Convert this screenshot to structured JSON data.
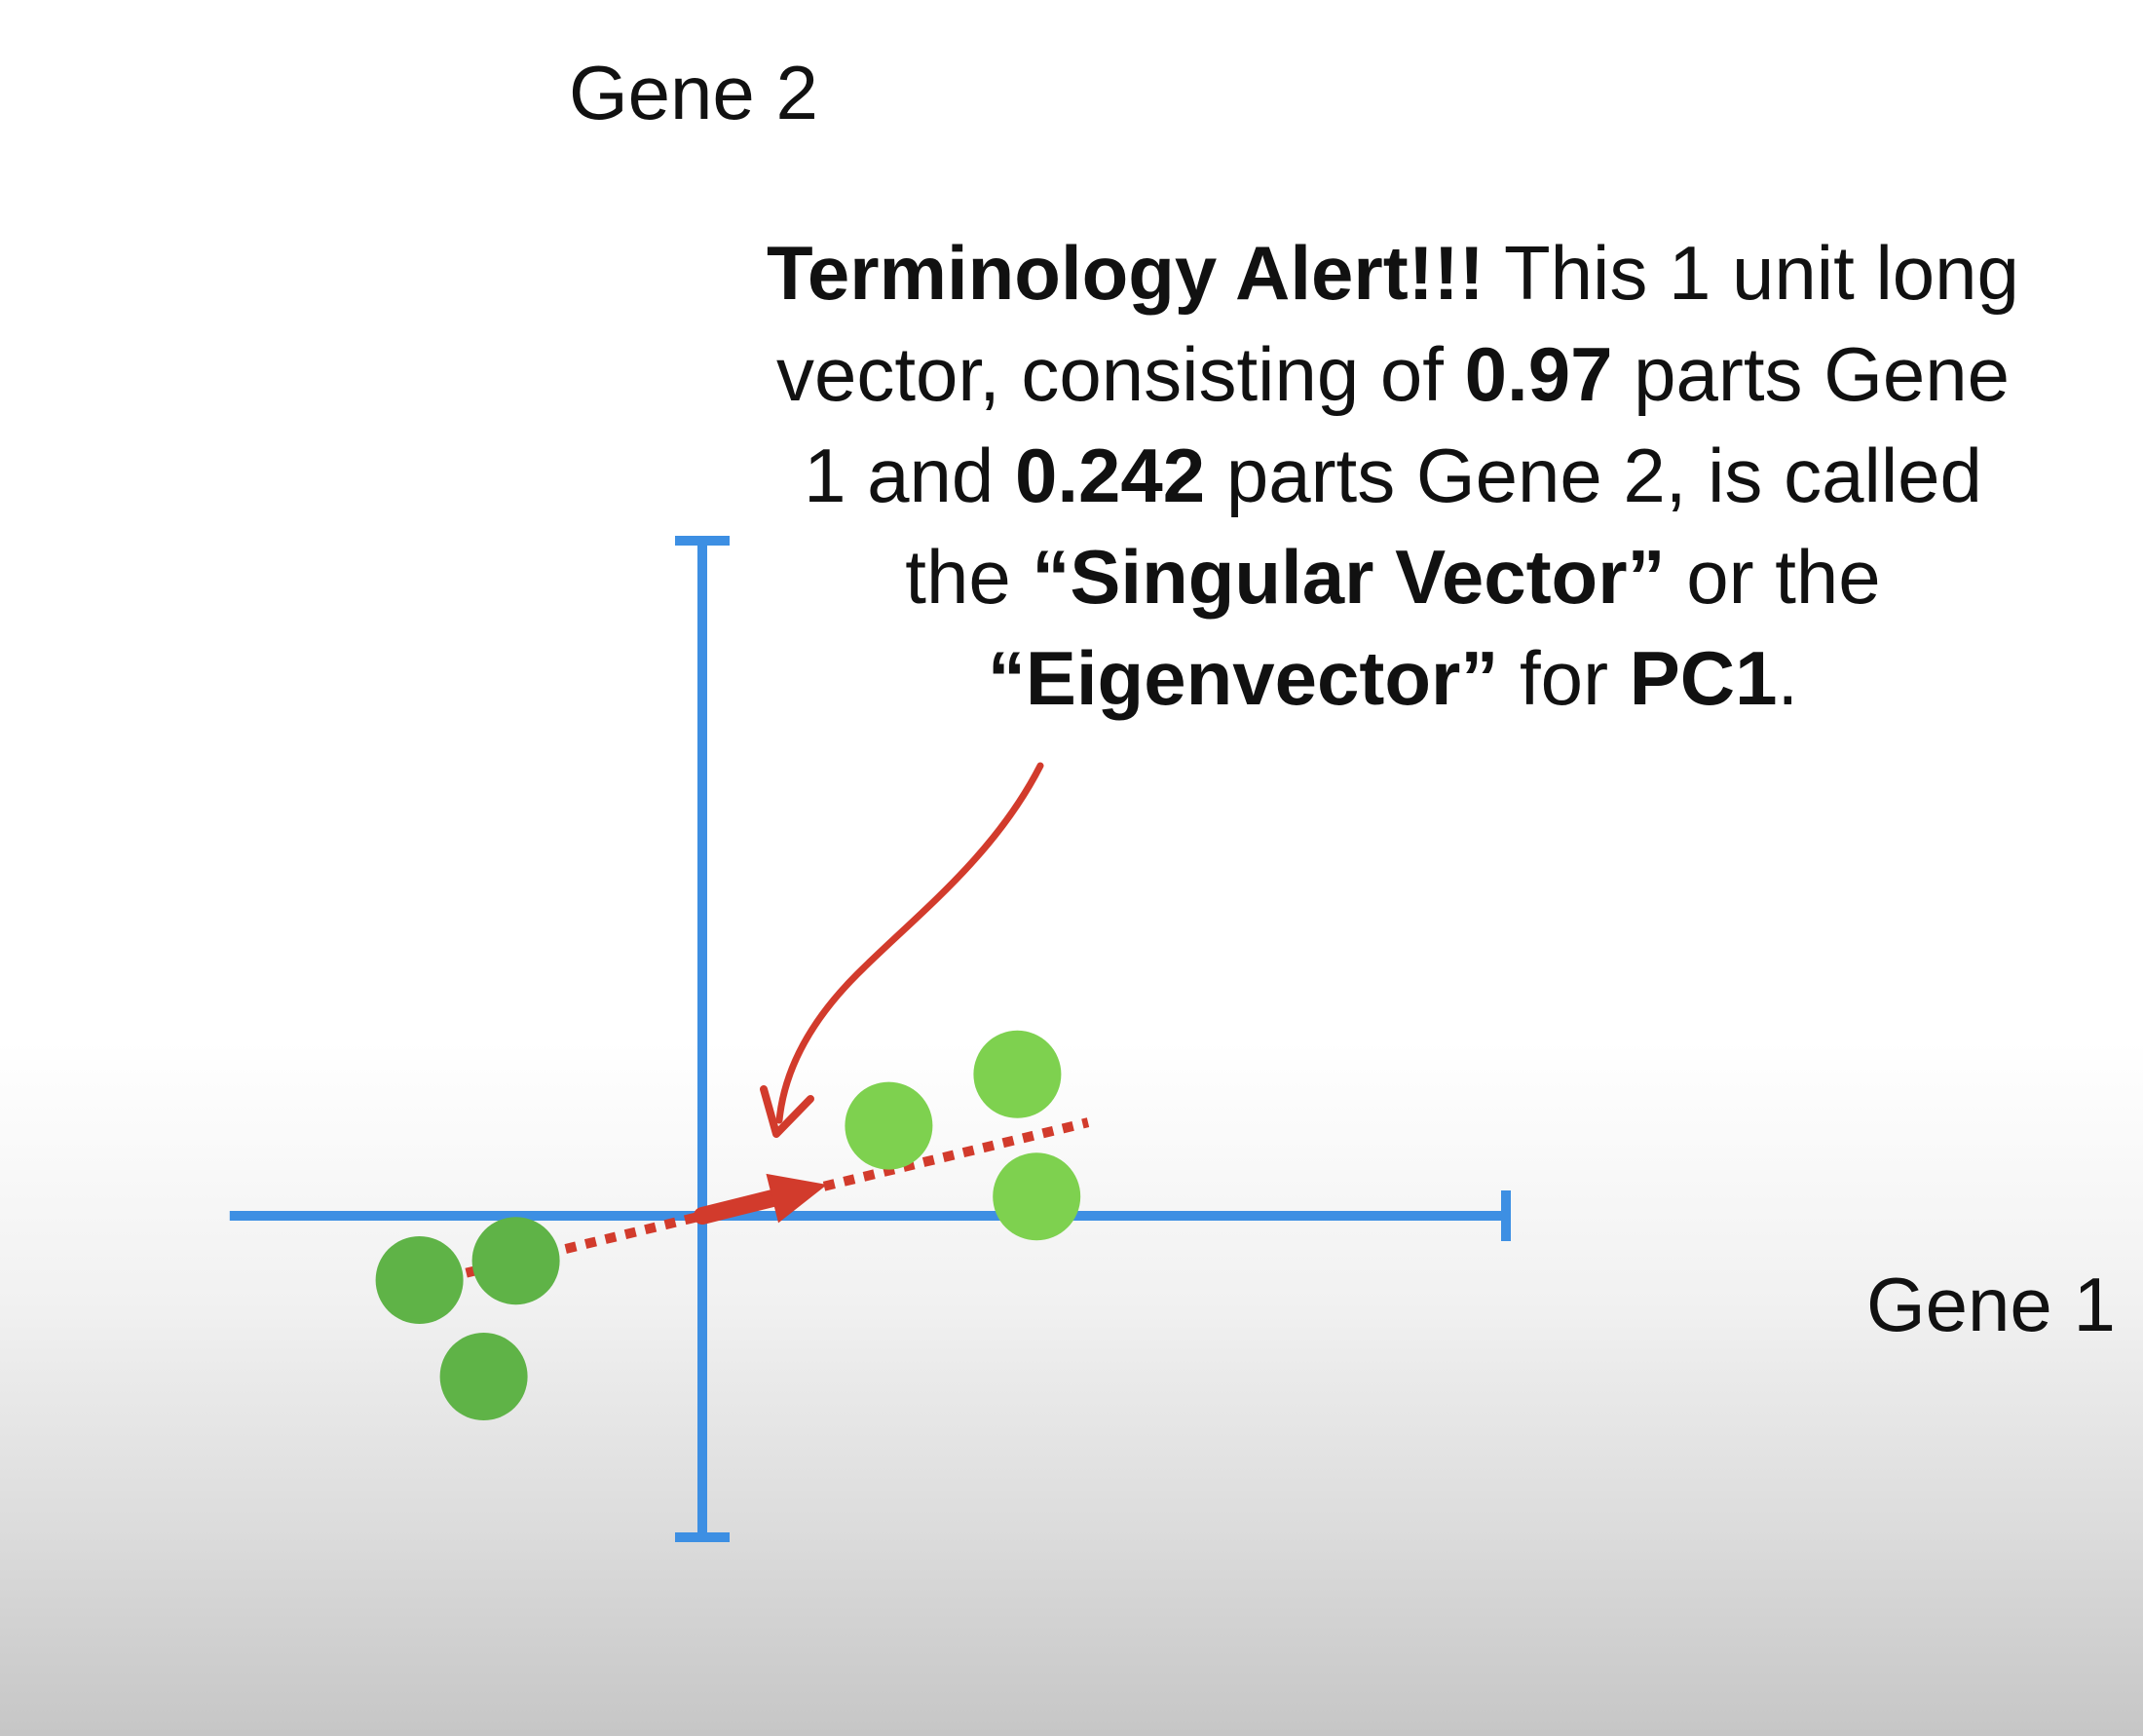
{
  "chart_data": {
    "type": "scatter",
    "xlabel": "Gene 1",
    "ylabel": "Gene 2",
    "xlim": [
      -7.2,
      12.5
    ],
    "ylim": [
      -5.0,
      10.5
    ],
    "points": [
      {
        "x": 5.2,
        "y": 0.3
      },
      {
        "x": 2.9,
        "y": 1.4
      },
      {
        "x": 4.9,
        "y": 2.2
      },
      {
        "x": -4.4,
        "y": -1.0
      },
      {
        "x": -2.9,
        "y": -0.7
      },
      {
        "x": -3.4,
        "y": -2.5
      }
    ],
    "point_colors": [
      "#7ed14f",
      "#5fb347"
    ],
    "axis_color": "#3d8fe3",
    "pc1_line": {
      "slope": 0.242,
      "x_range": [
        -4.6,
        6.0
      ],
      "color": "#d23b2c",
      "style": "dotted"
    },
    "singular_vector": [
      0.97,
      0.242
    ],
    "annotation": {
      "parts": [
        {
          "text": "Terminology Alert!!!",
          "bold": true
        },
        {
          "text": " This 1 unit long vector, consisting of ",
          "bold": false
        },
        {
          "text": "0.97",
          "bold": true
        },
        {
          "text": " parts Gene 1 and ",
          "bold": false
        },
        {
          "text": "0.242",
          "bold": true
        },
        {
          "text": " parts Gene 2, is called the ",
          "bold": false
        },
        {
          "text": "“Singular Vector”",
          "bold": true
        },
        {
          "text": " or the ",
          "bold": false
        },
        {
          "text": "“Eigenvector”",
          "bold": true
        },
        {
          "text": " for ",
          "bold": false
        },
        {
          "text": "PC1",
          "bold": true
        },
        {
          "text": ".",
          "bold": false
        }
      ]
    }
  }
}
